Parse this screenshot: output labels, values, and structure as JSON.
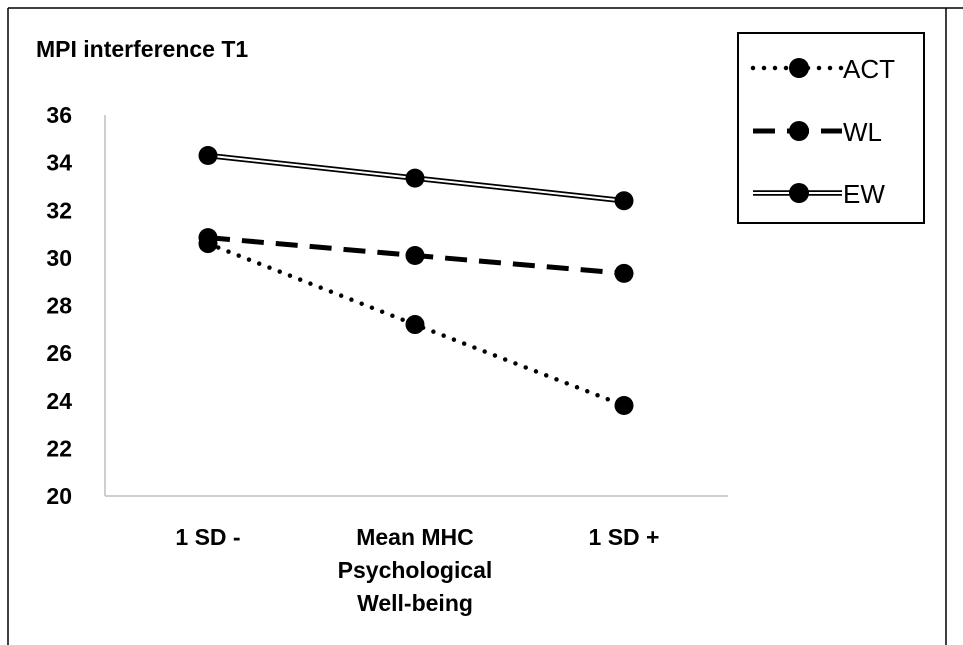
{
  "chart_data": {
    "type": "line",
    "title": "MPI interference T1",
    "categories": [
      [
        "1 SD -"
      ],
      [
        "Mean MHC",
        "Psychological",
        "Well-being"
      ],
      [
        "1 SD +"
      ]
    ],
    "ylim": [
      20,
      36
    ],
    "yticks": [
      20,
      22,
      24,
      26,
      28,
      30,
      32,
      34,
      36
    ],
    "grid": false,
    "legend_position": "top-right",
    "series": [
      {
        "name": "ACT",
        "values": [
          30.6,
          27.2,
          23.8
        ],
        "style": "dotted",
        "color": "#000000"
      },
      {
        "name": "WL",
        "values": [
          30.85,
          30.1,
          29.35
        ],
        "style": "dashed",
        "color": "#000000"
      },
      {
        "name": "EW",
        "values": [
          34.3,
          33.35,
          32.4
        ],
        "style": "double",
        "color": "#000000"
      }
    ]
  }
}
